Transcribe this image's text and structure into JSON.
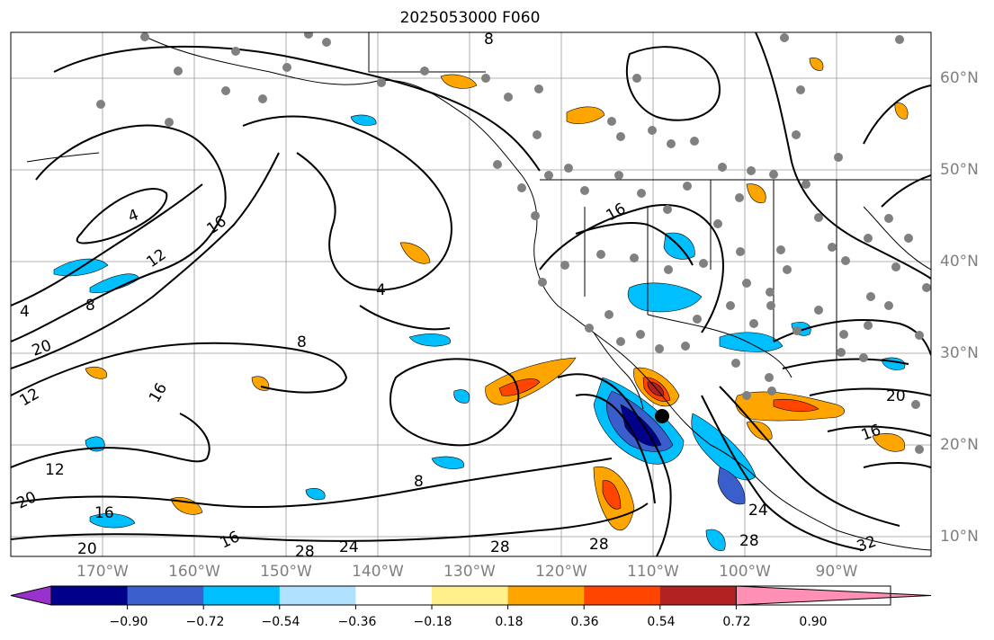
{
  "title": "2025053000 F060",
  "lat_labels": [
    "60°N",
    "50°N",
    "40°N",
    "30°N",
    "20°N",
    "10°N"
  ],
  "lon_labels": [
    "170°W",
    "160°W",
    "150°W",
    "140°W",
    "130°W",
    "120°W",
    "110°W",
    "100°W",
    "90°W"
  ],
  "colorbar": {
    "colors": [
      "#9932cc",
      "#00008b",
      "#3a5fcd",
      "#00bfff",
      "#b0e2ff",
      "#ffffff",
      "#fff08c",
      "#ffa500",
      "#ff4500",
      "#b22222",
      "#ff8fb4"
    ],
    "tick_labels": [
      "−0.90",
      "−0.72",
      "−0.54",
      "−0.36",
      "−0.18",
      "0.18",
      "0.36",
      "0.54",
      "0.72",
      "0.90"
    ]
  },
  "contour_labels": [
    "4",
    "8",
    "12",
    "16",
    "20",
    "24",
    "28",
    "32"
  ],
  "station_marker_color": "#808080",
  "center_marker_color": "#000000"
}
